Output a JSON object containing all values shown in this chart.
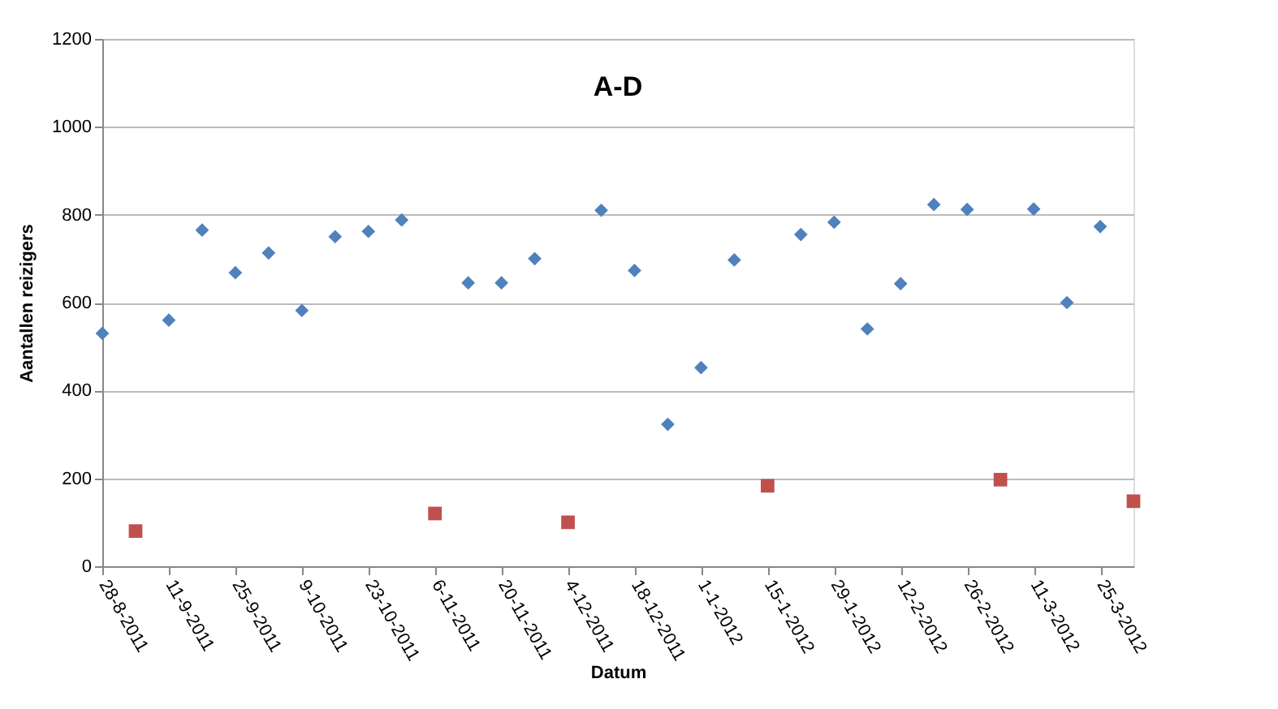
{
  "chart_data": {
    "type": "scatter",
    "title": "A-D",
    "xlabel": "Datum",
    "ylabel": "Aantallen reizigers",
    "xlim": [
      "2011-08-28",
      "2012-04-01"
    ],
    "xticks": [
      {
        "value": "2011-08-28",
        "label": "28-8-2011"
      },
      {
        "value": "2011-09-11",
        "label": "11-9-2011"
      },
      {
        "value": "2011-09-25",
        "label": "25-9-2011"
      },
      {
        "value": "2011-10-09",
        "label": "9-10-2011"
      },
      {
        "value": "2011-10-23",
        "label": "23-10-2011"
      },
      {
        "value": "2011-11-06",
        "label": "6-11-2011"
      },
      {
        "value": "2011-11-20",
        "label": "20-11-2011"
      },
      {
        "value": "2011-12-04",
        "label": "4-12-2011"
      },
      {
        "value": "2011-12-18",
        "label": "18-12-2011"
      },
      {
        "value": "2012-01-01",
        "label": "1-1-2012"
      },
      {
        "value": "2012-01-15",
        "label": "15-1-2012"
      },
      {
        "value": "2012-01-29",
        "label": "29-1-2012"
      },
      {
        "value": "2012-02-12",
        "label": "12-2-2012"
      },
      {
        "value": "2012-02-26",
        "label": "26-2-2012"
      },
      {
        "value": "2012-03-11",
        "label": "11-3-2012"
      },
      {
        "value": "2012-03-25",
        "label": "25-3-2012"
      }
    ],
    "ylim": [
      0,
      1200
    ],
    "yticks": [
      0,
      200,
      400,
      600,
      800,
      1000,
      1200
    ],
    "grid": "y",
    "legend": false,
    "series": [
      {
        "color": "#4f81bd",
        "marker": "diamond",
        "x": [
          "2011-08-28",
          "2011-09-11",
          "2011-09-18",
          "2011-09-25",
          "2011-10-02",
          "2011-10-09",
          "2011-10-16",
          "2011-10-23",
          "2011-10-30",
          "2011-11-13",
          "2011-11-20",
          "2011-11-27",
          "2011-12-11",
          "2011-12-18",
          "2011-12-25",
          "2012-01-01",
          "2012-01-08",
          "2012-01-22",
          "2012-01-29",
          "2012-02-05",
          "2012-02-12",
          "2012-02-19",
          "2012-02-26",
          "2012-03-11",
          "2012-03-18",
          "2012-03-25"
        ],
        "values": [
          530,
          560,
          765,
          668,
          713,
          582,
          750,
          762,
          788,
          645,
          645,
          700,
          810,
          673,
          323,
          452,
          697,
          755,
          783,
          540,
          643,
          823,
          812,
          813,
          600,
          773
        ]
      },
      {
        "color": "#c0504d",
        "marker": "square",
        "x": [
          "2011-09-04",
          "2011-11-06",
          "2011-12-04",
          "2012-01-15",
          "2012-03-04",
          "2012-04-01"
        ],
        "values": [
          80,
          120,
          100,
          183,
          197,
          148
        ]
      }
    ]
  }
}
